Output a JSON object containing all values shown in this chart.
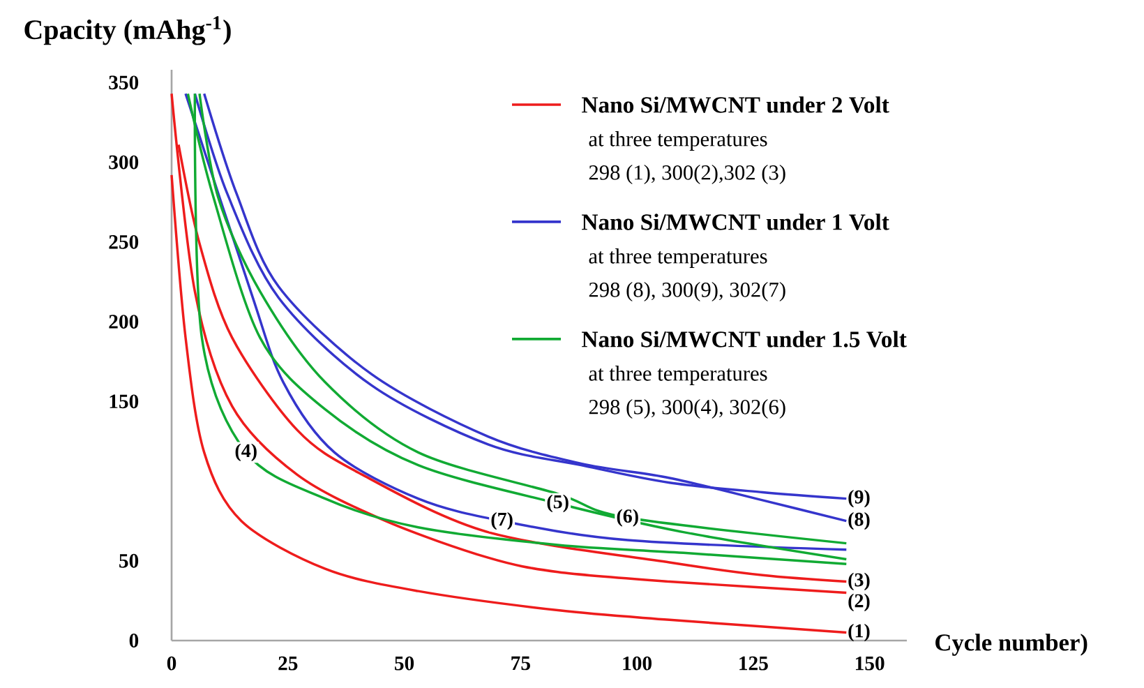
{
  "chart_data": {
    "type": "line",
    "ylabel": "Cpacity (mAhg$^{-1}$)",
    "xlabel": "Cycle number)",
    "xlim": [
      0,
      158
    ],
    "xticks": [
      0,
      25,
      50,
      75,
      100,
      125,
      150
    ],
    "ylim": [
      0,
      358
    ],
    "yticks": [
      0,
      50,
      150,
      200,
      250,
      300,
      350
    ],
    "series": [
      {
        "name": "(1)",
        "color": "#ee1c1c",
        "x": [
          0,
          3,
          7,
          15,
          33,
          53,
          83,
          107,
          145
        ],
        "values": [
          292,
          190,
          118,
          75,
          45,
          31,
          19,
          13,
          5
        ]
      },
      {
        "name": "(2)",
        "color": "#ee1c1c",
        "x": [
          0,
          5,
          13,
          27,
          46,
          68,
          83,
          107,
          145
        ],
        "values": [
          343,
          219,
          147,
          104,
          75,
          52,
          43,
          37,
          30
        ]
      },
      {
        "name": "(3)",
        "color": "#ee1c1c",
        "x": [
          1.5,
          6,
          13,
          27,
          41,
          68,
          107,
          127,
          145
        ],
        "values": [
          311,
          249,
          190,
          132,
          104,
          68,
          49,
          41,
          37
        ]
      },
      {
        "name": "(8)",
        "color": "#3535cc",
        "x": [
          7,
          14,
          23,
          43,
          68,
          88,
          107,
          127,
          145
        ],
        "values": [
          343,
          280,
          222,
          167,
          128,
          111,
          102,
          88,
          75
        ]
      },
      {
        "name": "(9)",
        "color": "#3535cc",
        "x": [
          5,
          12,
          23,
          43,
          68,
          88,
          107,
          127,
          145
        ],
        "values": [
          343,
          280,
          215,
          160,
          123,
          110,
          99,
          93,
          89
        ]
      },
      {
        "color": "#3535cc",
        "x": [
          3,
          17,
          24,
          35,
          53,
          71,
          98,
          145
        ],
        "values": [
          343,
          219,
          162,
          118,
          89,
          75,
          63,
          57
        ]
      },
      {
        "color": "#11aa33",
        "x": [
          3.5,
          9,
          19,
          33,
          53,
          83,
          110,
          145
        ],
        "values": [
          343,
          278,
          190,
          145,
          110,
          86,
          68,
          51
        ]
      },
      {
        "color": "#11aa33",
        "x": [
          5,
          6.5,
          16,
          33,
          53,
          83,
          110,
          145
        ],
        "values": [
          343,
          190,
          118,
          89,
          71,
          60,
          55,
          48
        ]
      },
      {
        "color": "#11aa33",
        "x": [
          6,
          10,
          19,
          33,
          53,
          83,
          98,
          145
        ],
        "values": [
          343,
          278,
          219,
          162,
          118,
          92,
          77,
          61
        ]
      }
    ],
    "annotations": [
      "Nano Si/MWCNT under 2 Volt",
      "at three temperatures",
      "298 (1), 300(2),302 (3)",
      "Nano Si/MWCNT under 1 Volt",
      "at three temperatures",
      "298 (8), 300(9), 302(7)",
      "Nano Si/MWCNT under 1.5 Volt",
      "at three temperatures",
      "298 (5), 300(4), 302(6)",
      {
        "text": "(4)",
        "x": 16,
        "y": 118
      },
      {
        "text": "(7)",
        "x": 71,
        "y": 75
      },
      {
        "text": "(5)",
        "x": 83,
        "y": 86
      },
      {
        "text": "(6)",
        "x": 98,
        "y": 77
      }
    ]
  }
}
